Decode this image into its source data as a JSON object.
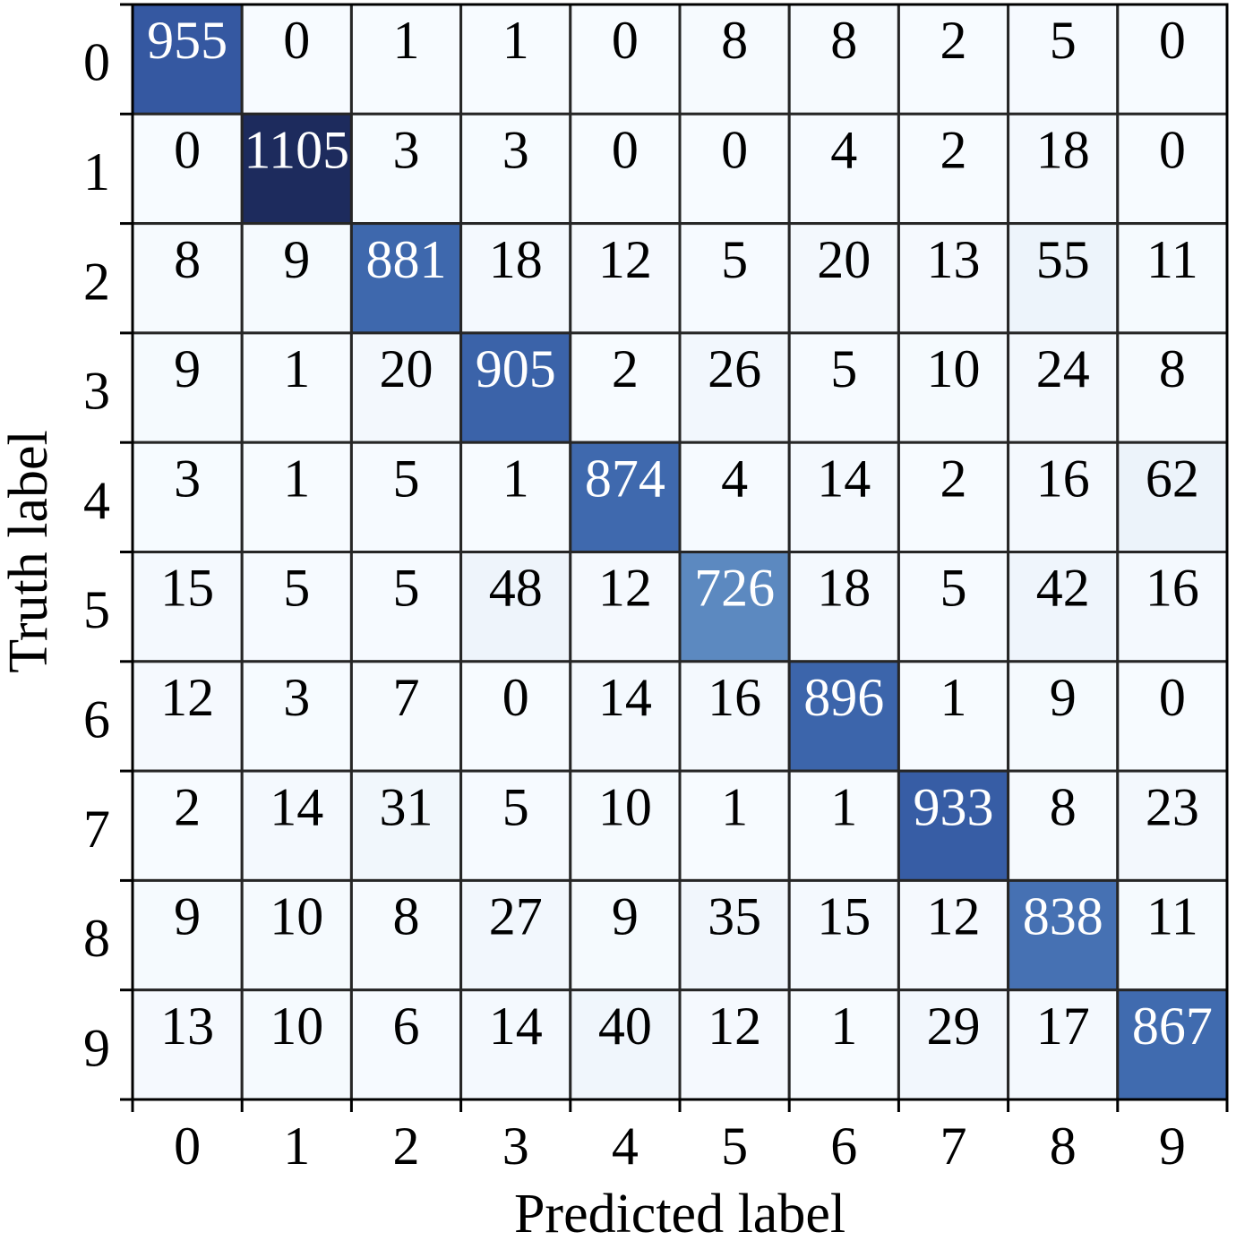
{
  "chart_data": {
    "type": "heatmap",
    "xlabel": "Predicted label",
    "ylabel": "Truth label",
    "x_categories": [
      "0",
      "1",
      "2",
      "3",
      "4",
      "5",
      "6",
      "7",
      "8",
      "9"
    ],
    "y_categories": [
      "0",
      "1",
      "2",
      "3",
      "4",
      "5",
      "6",
      "7",
      "8",
      "9"
    ],
    "values": [
      [
        955,
        0,
        1,
        1,
        0,
        8,
        8,
        2,
        5,
        0
      ],
      [
        0,
        1105,
        3,
        3,
        0,
        0,
        4,
        2,
        18,
        0
      ],
      [
        8,
        9,
        881,
        18,
        12,
        5,
        20,
        13,
        55,
        11
      ],
      [
        9,
        1,
        20,
        905,
        2,
        26,
        5,
        10,
        24,
        8
      ],
      [
        3,
        1,
        5,
        1,
        874,
        4,
        14,
        2,
        16,
        62
      ],
      [
        15,
        5,
        5,
        48,
        12,
        726,
        18,
        5,
        42,
        16
      ],
      [
        12,
        3,
        7,
        0,
        14,
        16,
        896,
        1,
        9,
        0
      ],
      [
        2,
        14,
        31,
        5,
        10,
        1,
        1,
        933,
        8,
        23
      ],
      [
        9,
        10,
        8,
        27,
        9,
        35,
        15,
        12,
        838,
        11
      ],
      [
        13,
        10,
        6,
        14,
        40,
        12,
        1,
        29,
        17,
        867
      ]
    ],
    "colorscale": [
      [
        0,
        "#f7fbff"
      ],
      [
        0.1,
        "#e3ecf6"
      ],
      [
        0.66,
        "#5b88c0"
      ],
      [
        0.8,
        "#3d67ad"
      ],
      [
        0.87,
        "#3457a0"
      ],
      [
        1,
        "#1d2b5d"
      ]
    ]
  }
}
